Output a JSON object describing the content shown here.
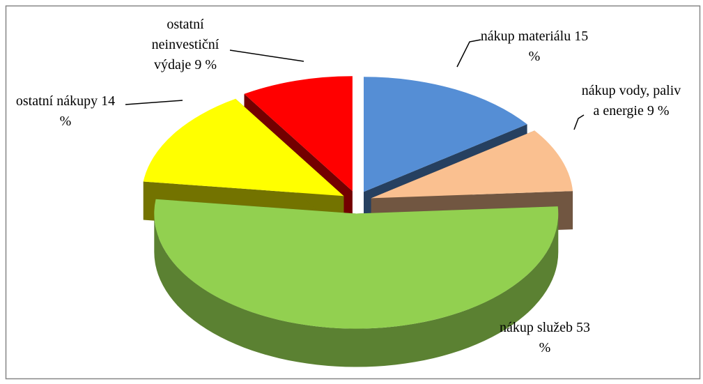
{
  "chart_data": {
    "type": "pie",
    "categories": [
      "nákup materiálu",
      "nákup vody, paliv a energie",
      "nákup služeb",
      "ostatní nákupy",
      "ostatní neinvestiční výdaje"
    ],
    "values": [
      15,
      9,
      53,
      14,
      9
    ],
    "value_labels": [
      "15 %",
      "9 %",
      "53 %",
      "14 %",
      "9 %"
    ],
    "colors": [
      "#558ed5",
      "#fac090",
      "#92d050",
      "#ffff00",
      "#ff0000"
    ]
  }
}
